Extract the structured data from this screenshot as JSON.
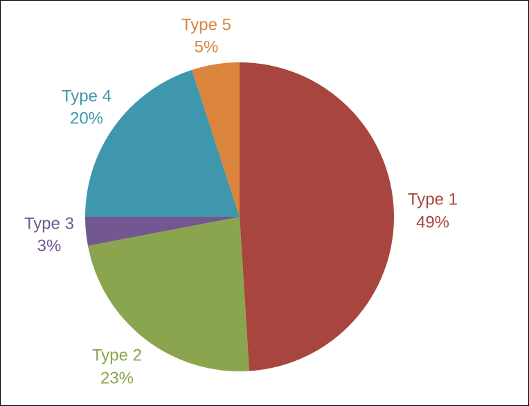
{
  "chart_data": {
    "type": "pie",
    "title": "",
    "start_angle_deg": 0,
    "direction": "clockwise",
    "slices": [
      {
        "label": "Type 1",
        "percent_label": "49%",
        "value": 49,
        "color": "#A9453F"
      },
      {
        "label": "Type 2",
        "percent_label": "23%",
        "value": 23,
        "color": "#8BA54E"
      },
      {
        "label": "Type 3",
        "percent_label": "3%",
        "value": 3,
        "color": "#725791"
      },
      {
        "label": "Type 4",
        "percent_label": "20%",
        "value": 20,
        "color": "#3F97AE"
      },
      {
        "label": "Type 5",
        "percent_label": "5%",
        "value": 5,
        "color": "#DB843D"
      }
    ],
    "legend": "none",
    "data_labels": "outside"
  }
}
